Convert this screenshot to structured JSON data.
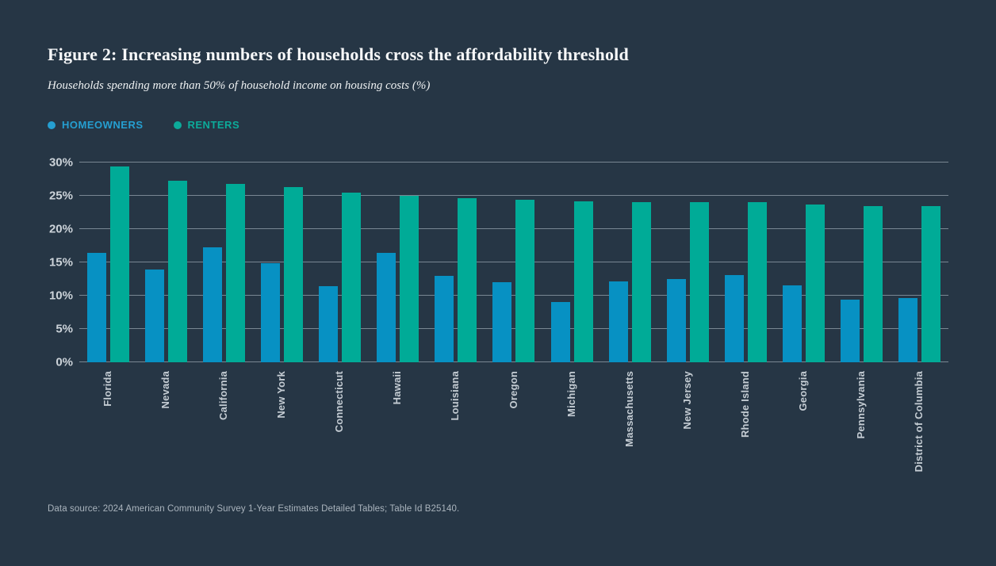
{
  "figure": {
    "title": "Figure 2: Increasing numbers of households cross the affordability threshold",
    "subtitle": "Households spending more than 50% of household income on housing costs (%)",
    "footer": "Data source: 2024 American Community Survey 1-Year Estimates Detailed Tables; Table Id B25140."
  },
  "legend": [
    {
      "label": "HOMEOWNERS",
      "color": "#259fd1"
    },
    {
      "label": "RENTERS",
      "color": "#0cab9a"
    }
  ],
  "colors": {
    "background": "#263645",
    "homeowners_bar": "#0791c3",
    "renters_bar": "#00ab97",
    "gridline": "rgba(190,202,212,0.55)",
    "axis_text": "#ccd3d9",
    "xlabel_text": "#c4ccd3",
    "title_text": "#f7f8f9",
    "subtitle_text": "#eef1f2",
    "footer_text": "#aab4bd"
  },
  "chart_data": {
    "type": "bar",
    "title": "Figure 2: Increasing numbers of households cross the affordability threshold",
    "subtitle": "Households spending more than 50% of household income on housing costs (%)",
    "unit": "%",
    "categories": [
      "Florida",
      "Nevada",
      "California",
      "New York",
      "Connecticut",
      "Hawaii",
      "Louisiana",
      "Oregon",
      "Michigan",
      "Massachusetts",
      "New Jersey",
      "Rhode Island",
      "Georgia",
      "Pennsylvania",
      "District of Columbia"
    ],
    "series": [
      {
        "name": "Homeowners",
        "color": "#0791c3",
        "values": [
          16.4,
          13.9,
          17.3,
          14.9,
          11.4,
          16.4,
          13.0,
          12.0,
          9.1,
          12.2,
          12.5,
          13.1,
          11.6,
          9.4,
          9.6
        ]
      },
      {
        "name": "Renters",
        "color": "#00ab97",
        "values": [
          29.4,
          27.3,
          26.8,
          26.3,
          25.5,
          25.0,
          24.6,
          24.4,
          24.2,
          24.1,
          24.0,
          24.0,
          23.7,
          23.5,
          23.4
        ]
      }
    ],
    "xlabel": "",
    "ylabel": "",
    "ylim": [
      0,
      30
    ],
    "yticks": [
      0,
      5,
      10,
      15,
      20,
      25,
      30
    ],
    "ytick_format": "{v}%",
    "grid": true,
    "legend_position": "top-left",
    "x_label_rotation": -90,
    "footnote": "Data source: 2024 American Community Survey 1-Year Estimates Detailed Tables; Table Id B25140."
  }
}
